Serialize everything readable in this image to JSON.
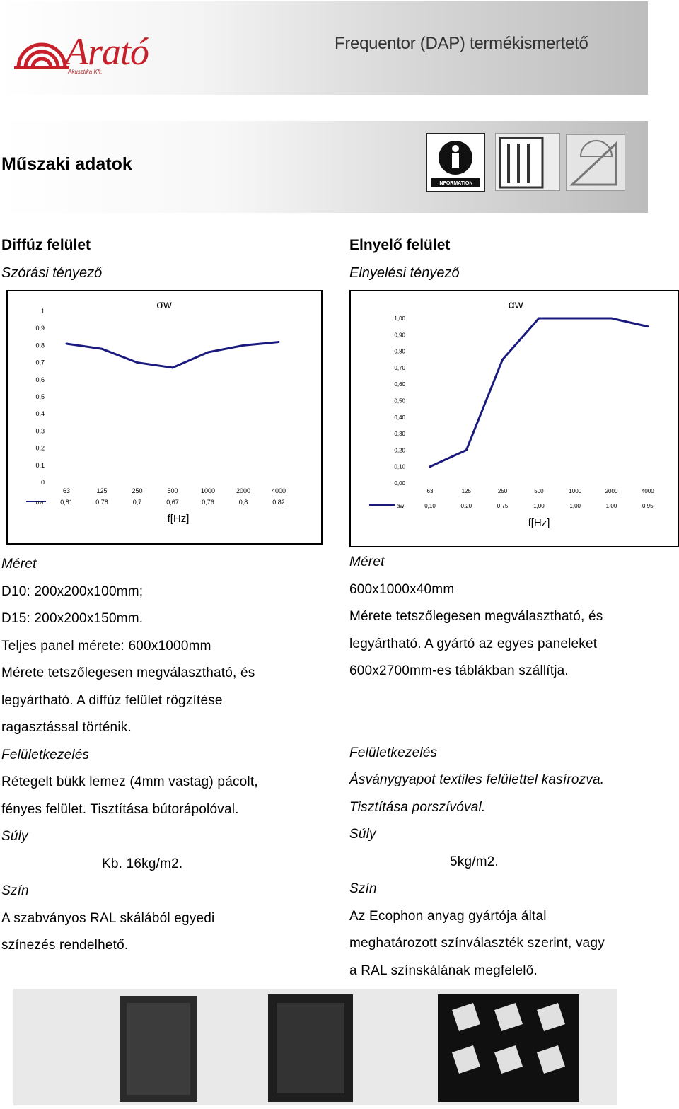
{
  "header": {
    "logo_text": "Arató",
    "logo_sub": "Akusztika Kft.",
    "banner_title": "Frequentor (DAP) termékismertető",
    "info_icon_label": "INFORMATION"
  },
  "section_title": "Műszaki adatok",
  "left": {
    "heading": "Diffúz felület",
    "subheading": "Szórási tényező",
    "size_label": "Méret",
    "size_lines": [
      "D10: 200x200x100mm;",
      "D15: 200x200x150mm.",
      "Teljes panel mérete: 600x1000mm",
      "Mérete tetszőlegesen megválasztható, és",
      "legyártható. A diffúz felület rögzítése",
      "ragasztással történik."
    ],
    "surface_label": "Felületkezelés",
    "surface_lines": [
      "Rétegelt bükk lemez (4mm vastag) pácolt,",
      "fényes felület. Tisztítása bútorápolóval."
    ],
    "weight_label": "Súly",
    "weight_value": "Kb. 16kg/m2.",
    "color_label": "Szín",
    "color_lines": [
      "A szabványos RAL skálából egyedi",
      "színezés rendelhető."
    ]
  },
  "right": {
    "heading": "Elnyelő felület",
    "subheading": "Elnyelési tényező",
    "size_label": "Méret",
    "size_lines": [
      "600x1000x40mm",
      "Mérete tetszőlegesen megválasztható, és",
      "legyártható. A gyártó az egyes paneleket",
      "600x2700mm-es táblákban szállítja."
    ],
    "surface_label": "Felületkezelés",
    "surface_lines": [
      "Ásványgyapot textiles felülettel kasírozva.",
      "Tisztítása porszívóval."
    ],
    "weight_label": "Súly",
    "weight_value": "5kg/m2.",
    "color_label": "Szín",
    "color_lines": [
      "Az Ecophon anyag gyártója által",
      "meghatározott színválaszték szerint, vagy",
      "a RAL színskálának megfelelő."
    ]
  },
  "chart_data": [
    {
      "type": "line",
      "title": "σw",
      "xlabel": "f[Hz]",
      "x": [
        "63",
        "125",
        "250",
        "500",
        "1000",
        "2000",
        "4000"
      ],
      "series": [
        {
          "name": "σw",
          "values": [
            0.81,
            0.78,
            0.7,
            0.67,
            0.76,
            0.8,
            0.82
          ]
        }
      ],
      "table_values": [
        "0,81",
        "0,78",
        "0,7",
        "0,67",
        "0,76",
        "0,8",
        "0,82"
      ],
      "ylim": [
        0,
        1
      ],
      "yticks": [
        "1",
        "0,9",
        "0,8",
        "0,7",
        "0,6",
        "0,5",
        "0,4",
        "0,3",
        "0,2",
        "0,1",
        "0"
      ],
      "color": "#1a1a7e"
    },
    {
      "type": "line",
      "title": "αw",
      "xlabel": "f[Hz]",
      "x": [
        "63",
        "125",
        "250",
        "500",
        "1000",
        "2000",
        "4000"
      ],
      "series": [
        {
          "name": "αw",
          "values": [
            0.1,
            0.2,
            0.75,
            1.0,
            1.0,
            1.0,
            0.95
          ]
        }
      ],
      "table_values": [
        "0,10",
        "0,20",
        "0,75",
        "1,00",
        "1,00",
        "1,00",
        "0,95"
      ],
      "ylim": [
        0,
        1
      ],
      "yticks": [
        "1,00",
        "0,90",
        "0,80",
        "0,70",
        "0,60",
        "0,50",
        "0,40",
        "0,30",
        "0,20",
        "0,10",
        "0,00"
      ],
      "color": "#1a1a7e"
    }
  ]
}
